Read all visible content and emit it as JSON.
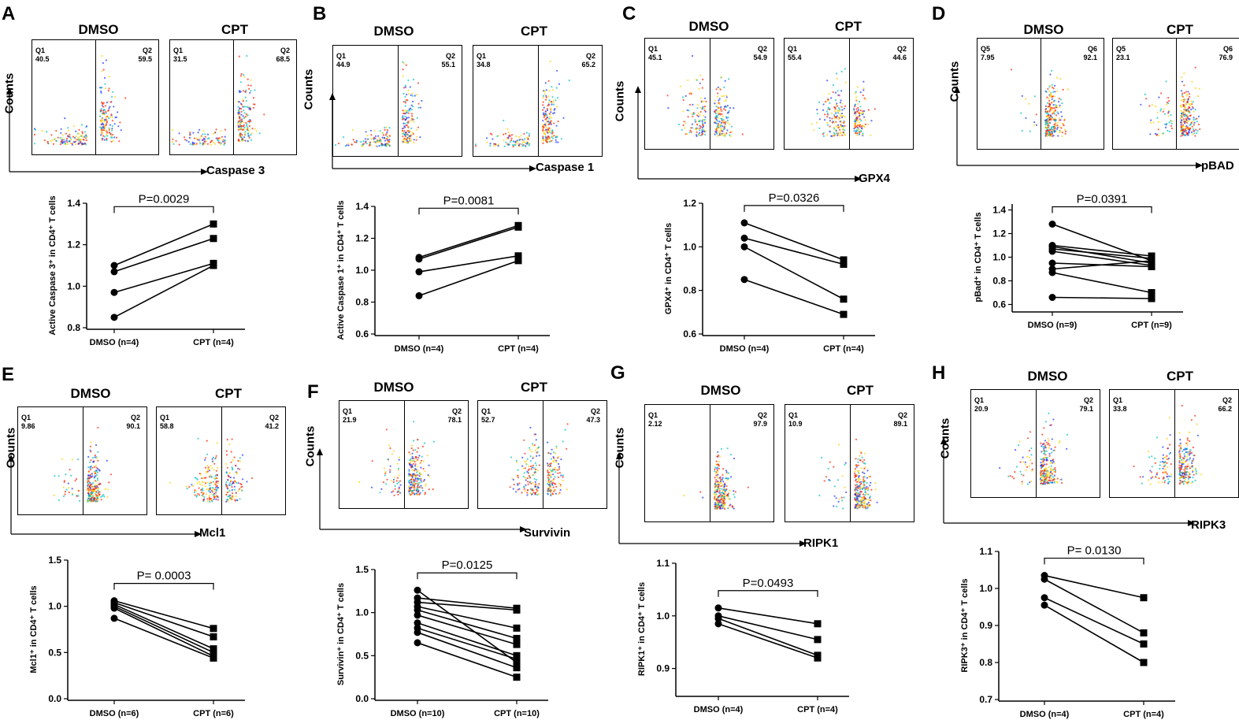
{
  "panels": [
    {
      "letter": "A",
      "conditions": [
        "DMSO",
        "CPT"
      ],
      "marker": "Caspase 3",
      "counts_label": "Counts",
      "quadrants": [
        {
          "left": "Q1\n40.5",
          "right": "Q2\n59.5"
        },
        {
          "left": "Q1\n31.5",
          "right": "Q2\n68.5"
        }
      ]
    },
    {
      "letter": "B",
      "conditions": [
        "DMSO",
        "CPT"
      ],
      "marker": "Caspase 1",
      "counts_label": "Counts",
      "quadrants": [
        {
          "left": "Q1\n44.9",
          "right": "Q2\n55.1"
        },
        {
          "left": "Q1\n34.8",
          "right": "Q2\n65.2"
        }
      ]
    },
    {
      "letter": "C",
      "conditions": [
        "DMSO",
        "CPT"
      ],
      "marker": "GPX4",
      "counts_label": "Counts",
      "quadrants": [
        {
          "left": "Q1\n45.1",
          "right": "Q2\n54.9"
        },
        {
          "left": "Q1\n55.4",
          "right": "Q2\n44.6"
        }
      ]
    },
    {
      "letter": "D",
      "conditions": [
        "DMSO",
        "CPT"
      ],
      "marker": "pBAD",
      "counts_label": "Counts",
      "quadrants": [
        {
          "left": "Q5\n7.95",
          "right": "Q6\n92.1"
        },
        {
          "left": "Q5\n23.1",
          "right": "Q6\n76.9"
        }
      ]
    },
    {
      "letter": "E",
      "conditions": [
        "DMSO",
        "CPT"
      ],
      "marker": "Mcl1",
      "counts_label": "Counts",
      "quadrants": [
        {
          "left": "Q1\n9.86",
          "right": "Q2\n90.1"
        },
        {
          "left": "Q1\n58.8",
          "right": "Q2\n41.2"
        }
      ]
    },
    {
      "letter": "F",
      "conditions": [
        "DMSO",
        "CPT"
      ],
      "marker": "Survivin",
      "counts_label": "Counts",
      "quadrants": [
        {
          "left": "Q1\n21.9",
          "right": "Q2\n78.1"
        },
        {
          "left": "Q1\n52.7",
          "right": "Q2\n47.3"
        }
      ]
    },
    {
      "letter": "G",
      "conditions": [
        "DMSO",
        "CPT"
      ],
      "marker": "RIPK1",
      "counts_label": "Counts",
      "quadrants": [
        {
          "left": "Q1\n2.12",
          "right": "Q2\n97.9"
        },
        {
          "left": "Q1\n10.9",
          "right": "Q2\n89.1"
        }
      ]
    },
    {
      "letter": "H",
      "conditions": [
        "DMSO",
        "CPT"
      ],
      "marker": "RIPK3",
      "counts_label": "Counts",
      "quadrants": [
        {
          "left": "Q1\n20.9",
          "right": "Q2\n79.1"
        },
        {
          "left": "Q1\n33.8",
          "right": "Q2\n66.2"
        }
      ]
    }
  ],
  "colors": {
    "line": "#000000",
    "dot_low": "#1a33ff",
    "dot_mid": "#00c0c0",
    "dot_high": "#ffd000",
    "dot_peak": "#ff2200"
  },
  "chart_data": [
    {
      "type": "line",
      "panel": "A",
      "ylabel": "Active Caspase 3⁺ in CD4⁺ T cells",
      "categories": [
        "DMSO (n=4)",
        "CPT (n=4)"
      ],
      "ylim": [
        0.8,
        1.4
      ],
      "yticks": [
        "0.8",
        "1.0",
        "1.2",
        "1.4"
      ],
      "yticks_val": [
        0.8,
        1.0,
        1.2,
        1.4
      ],
      "pvalue": "P=0.0029",
      "pairs": [
        [
          1.1,
          1.3
        ],
        [
          1.07,
          1.23
        ],
        [
          0.97,
          1.11
        ],
        [
          0.85,
          1.1
        ]
      ]
    },
    {
      "type": "line",
      "panel": "B",
      "ylabel": "Active Caspase 1⁺ in CD4⁺ T cells",
      "categories": [
        "DMSO (n=4)",
        "CPT (n=4)"
      ],
      "ylim": [
        0.6,
        1.4
      ],
      "yticks": [
        "0.6",
        "0.8",
        "1.0",
        "1.2",
        "1.4"
      ],
      "yticks_val": [
        0.6,
        0.8,
        1.0,
        1.2,
        1.4
      ],
      "pvalue": "P=0.0081",
      "pairs": [
        [
          1.08,
          1.28
        ],
        [
          1.07,
          1.27
        ],
        [
          0.99,
          1.09
        ],
        [
          0.84,
          1.06
        ]
      ]
    },
    {
      "type": "line",
      "panel": "C",
      "ylabel": "GPX4⁺ in CD4⁺ T cells",
      "categories": [
        "DMSO (n=4)",
        "CPT (n=4)"
      ],
      "ylim": [
        0.6,
        1.2
      ],
      "yticks": [
        "0.6",
        "0.8",
        "1.0",
        "1.2"
      ],
      "yticks_val": [
        0.6,
        0.8,
        1.0,
        1.2
      ],
      "pvalue": "P=0.0326",
      "pairs": [
        [
          1.11,
          0.94
        ],
        [
          1.04,
          0.92
        ],
        [
          1.0,
          0.76
        ],
        [
          0.85,
          0.69
        ]
      ]
    },
    {
      "type": "line",
      "panel": "D",
      "ylabel": "pBad⁺ in CD4⁺ T cells",
      "categories": [
        "DMSO (n=9)",
        "CPT (n=9)"
      ],
      "ylim": [
        0.55,
        1.45
      ],
      "yticks": [
        "0.6",
        "0.8",
        "1.0",
        "1.2",
        "1.4"
      ],
      "yticks_val": [
        0.6,
        0.8,
        1.0,
        1.2,
        1.4
      ],
      "pvalue": "P=0.0391",
      "pairs": [
        [
          1.28,
          0.97
        ],
        [
          1.1,
          1.01
        ],
        [
          1.09,
          0.95
        ],
        [
          1.07,
          0.99
        ],
        [
          1.05,
          0.93
        ],
        [
          0.95,
          0.92
        ],
        [
          0.9,
          0.97
        ],
        [
          0.87,
          0.7
        ],
        [
          0.66,
          0.65
        ]
      ]
    },
    {
      "type": "line",
      "panel": "E",
      "ylabel": "Mcl1⁺ in CD4⁺ T cells",
      "categories": [
        "DMSO (n=6)",
        "CPT (n=6)"
      ],
      "ylim": [
        0.0,
        1.5
      ],
      "yticks": [
        "0.0",
        "0.5",
        "1.0",
        "1.5"
      ],
      "yticks_val": [
        0.0,
        0.5,
        1.0,
        1.5
      ],
      "pvalue": "P= 0.0003",
      "pairs": [
        [
          1.06,
          0.76
        ],
        [
          1.04,
          0.67
        ],
        [
          1.02,
          0.54
        ],
        [
          1.0,
          0.5
        ],
        [
          0.98,
          0.46
        ],
        [
          0.87,
          0.44
        ]
      ]
    },
    {
      "type": "line",
      "panel": "F",
      "ylabel": "Survivin⁺ in CD4⁺ T cells",
      "categories": [
        "DMSO (n=10)",
        "CPT (n=10)"
      ],
      "ylim": [
        0.0,
        1.5
      ],
      "yticks": [
        "0.0",
        "0.5",
        "1.0",
        "1.5"
      ],
      "yticks_val": [
        0.0,
        0.5,
        1.0,
        1.5
      ],
      "pvalue": "P=0.0125",
      "pairs": [
        [
          1.26,
          0.42
        ],
        [
          1.17,
          1.05
        ],
        [
          1.12,
          1.03
        ],
        [
          1.07,
          0.82
        ],
        [
          1.03,
          0.7
        ],
        [
          0.97,
          0.63
        ],
        [
          0.88,
          0.5
        ],
        [
          0.82,
          0.46
        ],
        [
          0.77,
          0.36
        ],
        [
          0.65,
          0.25
        ]
      ]
    },
    {
      "type": "line",
      "panel": "G",
      "ylabel": "RIPK1⁺ in CD4⁺ T cells",
      "categories": [
        "DMSO (n=4)",
        "CPT (n=4)"
      ],
      "ylim": [
        0.85,
        1.1
      ],
      "yticks": [
        "0.9",
        "1.0",
        "1.1"
      ],
      "yticks_val": [
        0.9,
        1.0,
        1.1
      ],
      "pvalue": "P=0.0493",
      "pairs": [
        [
          1.015,
          0.985
        ],
        [
          1.0,
          0.955
        ],
        [
          0.995,
          0.925
        ],
        [
          0.985,
          0.92
        ]
      ]
    },
    {
      "type": "line",
      "panel": "H",
      "ylabel": "RIPK3⁺ in CD4⁺ T cells",
      "categories": [
        "DMSO (n=4)",
        "CPT (n=4)"
      ],
      "ylim": [
        0.7,
        1.1
      ],
      "yticks": [
        "0.7",
        "0.8",
        "0.9",
        "1.0",
        "1.1"
      ],
      "yticks_val": [
        0.7,
        0.8,
        0.9,
        1.0,
        1.1
      ],
      "pvalue": "P= 0.0130",
      "pairs": [
        [
          1.035,
          0.975
        ],
        [
          1.025,
          0.88
        ],
        [
          0.975,
          0.85
        ],
        [
          0.955,
          0.8
        ]
      ]
    }
  ]
}
